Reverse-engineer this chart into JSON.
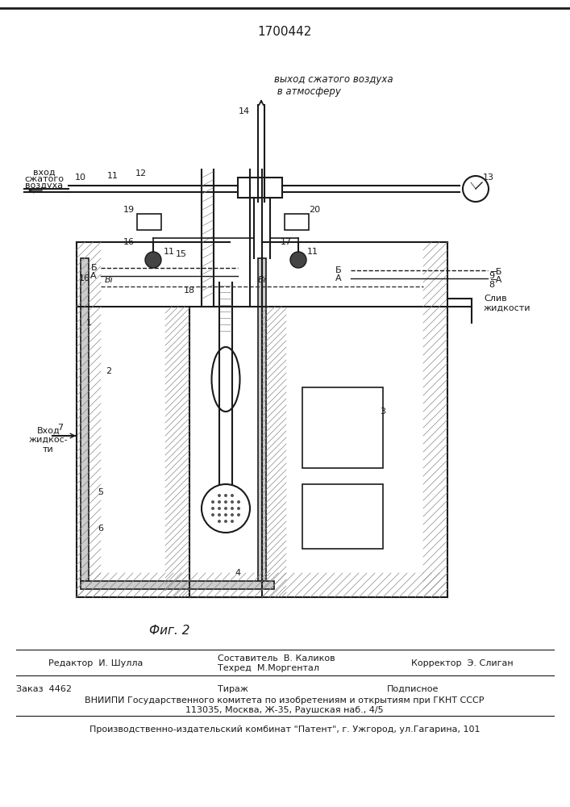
{
  "patent_number": "1700442",
  "figure_label": "Фиг. 2",
  "bg_color": "#ffffff",
  "line_color": "#1a1a1a",
  "hatch_color": "#555555",
  "title_fontsize": 12,
  "label_fontsize": 8.5,
  "annotation_fontsize": 7.5,
  "footer_lines": [
    [
      "Редактор  И. Шулла",
      "Составитель  В. Каликов",
      "Корректор  Э. Слиган"
    ],
    [
      "",
      "Техред  М.Моргентал",
      ""
    ],
    [
      "Заказ  4462",
      "Тираж",
      "Подписное"
    ],
    [
      "ВНИИПИ Государственного комитета по изобретениям и открытиям при ГКНТ СССР"
    ],
    [
      "113035, Москва, Ж-35, Раушская наб., 4/5"
    ],
    [
      "Производственно-издательский комбинат \"Патент\", г. Ужгород, ул.Гагарина, 101"
    ]
  ],
  "italic_label": "выход сжатого воздуха\n в атмосферу",
  "inlet_label": "вход\nсжатого\nвоздуха",
  "fluid_inlet_label": "Вход\nжидкос-\nти",
  "drain_label": "Слив\nжидкости",
  "Bi_label": "Bi",
  "levelA_label": "А",
  "levelB_label": "Б"
}
